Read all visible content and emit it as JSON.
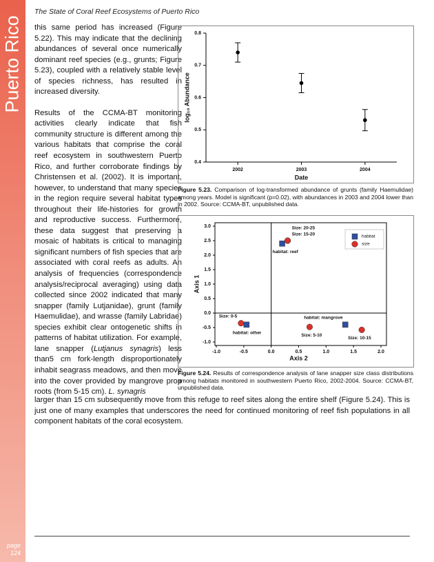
{
  "header": {
    "title": "The State of Coral Reef Ecosystems of Puerto Rico"
  },
  "sidebar": {
    "title": "Puerto Rico",
    "page_label": "page",
    "page_number": "124"
  },
  "body": {
    "paragraphs": [
      "this same period has increased (Figure 5.22).  This may indicate that the declining abundances of several once numerically dominant reef species (e.g., grunts; Figure 5.23), coupled with a relatively stable level of species richness, has resulted in increased diversity."
    ],
    "paragraph_runs": [
      "Results of the CCMA-BT monitoring activities clearly indicate that fish community structure is different among the various habitats that comprise the coral reef ecosystem in southwestern Puerto Rico, and further corroborate findings by Christensen et al. (2002). It is important, however, to understand that many species in the region require several habitat types throughout their life-histories for growth and reproductive success. Furthermore, these data suggest that preserving a mosaic of habitats is critical to managing significant numbers of fish species that are associated with coral reefs as adults. An analysis of frequencies (correspondence analysis/reciprocal averaging) using data collected since 2002 indicated that many snapper (family Lutjanidae), grunt (family Haemulidae), and wrasse (family Labridae) species exhibit clear ontogenetic shifts in patterns of habitat utilization. For example, lane snapper (",
      "Lutjanus synagris",
      ") less than5 cm fork-length disproportionately inhabit seagrass meadows, and then move into the cover provided by mangrove prop roots (from 5-15 cm). ",
      "L. synagris"
    ],
    "continuation": "larger than 15 cm subsequently move from this refuge to reef sites along the entire shelf (Figure 5.24). This is just one of many examples that underscores the need for continued monitoring of reef fish populations in all component habitats of the coral ecosystem."
  },
  "figures": [
    {
      "label": "Figure 5.23.",
      "caption": "Comparison of log-transformed abundance of grunts (family Haemulidae) among years. Model is significant (p=0.02), with abundances in 2003 and 2004 lower than in 2002.  Source: CCMA-BT, unpublished data."
    },
    {
      "label": "Figure 5.24.",
      "caption": "Results of correspondence analysis of lane snapper size class distributions among habitats monitored in southwestern Puerto Rico, 2002-2004.  Source: CCMA-BT, unpublished data."
    }
  ],
  "chart_data": [
    {
      "type": "errorbar",
      "xlabel": "Date",
      "ylabel": "log₁₀ Abundance",
      "categories": [
        "2002",
        "2003",
        "2004"
      ],
      "values": [
        0.74,
        0.645,
        0.53
      ],
      "errors": [
        0.03,
        0.03,
        0.033
      ],
      "color": "#000000",
      "ylim": [
        0.4,
        0.8
      ],
      "yticks": [
        0.4,
        0.5,
        0.6,
        0.7,
        0.8
      ]
    },
    {
      "type": "scatter",
      "xlabel": "Axis 2",
      "ylabel": "Axis 1",
      "xlim": [
        -1.0,
        2.0
      ],
      "xticks": [
        {
          "value": -1,
          "label": "-1.0"
        },
        {
          "value": -0.5,
          "label": "-0.5"
        },
        {
          "value": 0,
          "label": "0.0"
        },
        {
          "value": 0.5,
          "label": "0.5"
        },
        {
          "value": 1,
          "label": "1.0"
        },
        {
          "value": 1.5,
          "label": "1.5"
        },
        {
          "value": 2,
          "label": "2.0"
        }
      ],
      "ylim": [
        -1.0,
        3.0
      ],
      "yticks": [
        {
          "value": 3,
          "label": "3.0"
        },
        {
          "value": 2.5,
          "label": "2.5"
        },
        {
          "value": 2,
          "label": "2.0"
        },
        1.5,
        {
          "value": 1,
          "label": "1.0"
        },
        0.5,
        {
          "value": 0,
          "label": "0.0"
        },
        -0.5,
        {
          "value": -1,
          "label": "-1.0"
        }
      ],
      "legend": "upper right",
      "series": [
        {
          "name": "habitat",
          "color": "#2f4f9f",
          "marker": "square",
          "x": [
            0.2,
            -0.45,
            1.35
          ],
          "y": [
            2.4,
            -0.4,
            -0.4
          ],
          "point_labels": [
            "habitat: reef",
            "habitat: other",
            "habitat: mangrove"
          ]
        },
        {
          "name": "size",
          "color": "#d9312a",
          "marker": "circle",
          "x": [
            0.3,
            0.3,
            -0.55,
            0.7,
            1.65
          ],
          "y": [
            2.5,
            2.5,
            -0.35,
            -0.48,
            -0.58
          ],
          "point_labels": [
            "Size: 20-25",
            "Size: 15-20",
            "Size: 0-5",
            "Size: 5-10",
            "Size: 10-15"
          ]
        }
      ]
    }
  ]
}
